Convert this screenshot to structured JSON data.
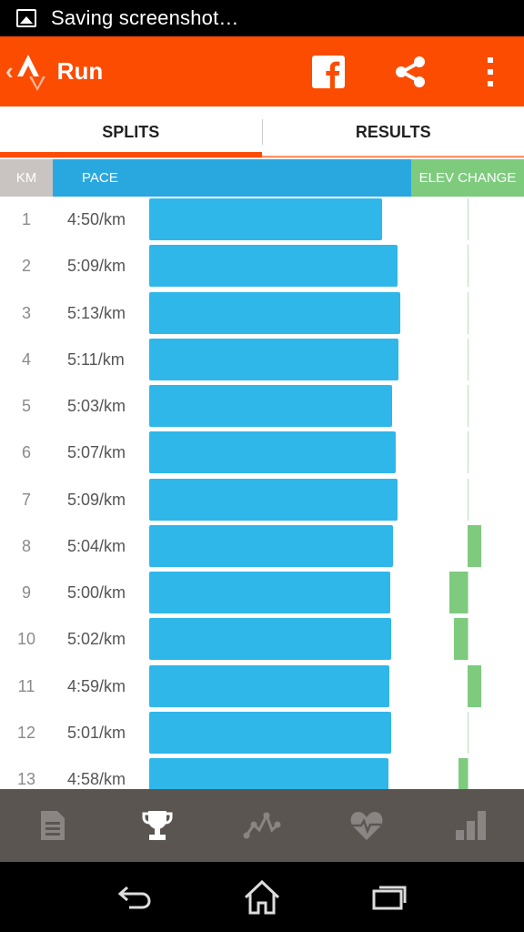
{
  "status_bar": {
    "notification_text": "Saving screenshot…"
  },
  "app_bar": {
    "title": "Run",
    "back_glyph": "‹"
  },
  "tabs": [
    {
      "label": "SPLITS",
      "active": true
    },
    {
      "label": "RESULTS",
      "active": false
    }
  ],
  "table_header": {
    "km": "KM",
    "pace": "PACE",
    "elev": "ELEV CHANGE"
  },
  "colors": {
    "accent": "#fc4c02",
    "pace_bar": "#2fb7ea",
    "elev_bar": "#7ecb7e",
    "header_pace": "#29a8e0"
  },
  "splits": [
    {
      "km": "1",
      "pace": "4:50/km",
      "pace_seconds": 290,
      "elev": 0
    },
    {
      "km": "2",
      "pace": "5:09/km",
      "pace_seconds": 309,
      "elev": 0
    },
    {
      "km": "3",
      "pace": "5:13/km",
      "pace_seconds": 313,
      "elev": 0
    },
    {
      "km": "4",
      "pace": "5:11/km",
      "pace_seconds": 311,
      "elev": 0
    },
    {
      "km": "5",
      "pace": "5:03/km",
      "pace_seconds": 303,
      "elev": 0
    },
    {
      "km": "6",
      "pace": "5:07/km",
      "pace_seconds": 307,
      "elev": 0
    },
    {
      "km": "7",
      "pace": "5:09/km",
      "pace_seconds": 309,
      "elev": 0
    },
    {
      "km": "8",
      "pace": "5:04/km",
      "pace_seconds": 304,
      "elev": 3
    },
    {
      "km": "9",
      "pace": "5:00/km",
      "pace_seconds": 300,
      "elev": -4
    },
    {
      "km": "10",
      "pace": "5:02/km",
      "pace_seconds": 302,
      "elev": -3
    },
    {
      "km": "11",
      "pace": "4:59/km",
      "pace_seconds": 299,
      "elev": 3
    },
    {
      "km": "12",
      "pace": "5:01/km",
      "pace_seconds": 301,
      "elev": 0
    },
    {
      "km": "13",
      "pace": "4:58/km",
      "pace_seconds": 298,
      "elev": -2
    }
  ],
  "bottom_nav": [
    {
      "icon": "document-icon",
      "active": false
    },
    {
      "icon": "trophy-icon",
      "active": true
    },
    {
      "icon": "activity-graph-icon",
      "active": false
    },
    {
      "icon": "heart-rate-icon",
      "active": false
    },
    {
      "icon": "bar-chart-icon",
      "active": false
    }
  ],
  "system_nav": [
    "back-icon",
    "home-icon",
    "recents-icon"
  ]
}
